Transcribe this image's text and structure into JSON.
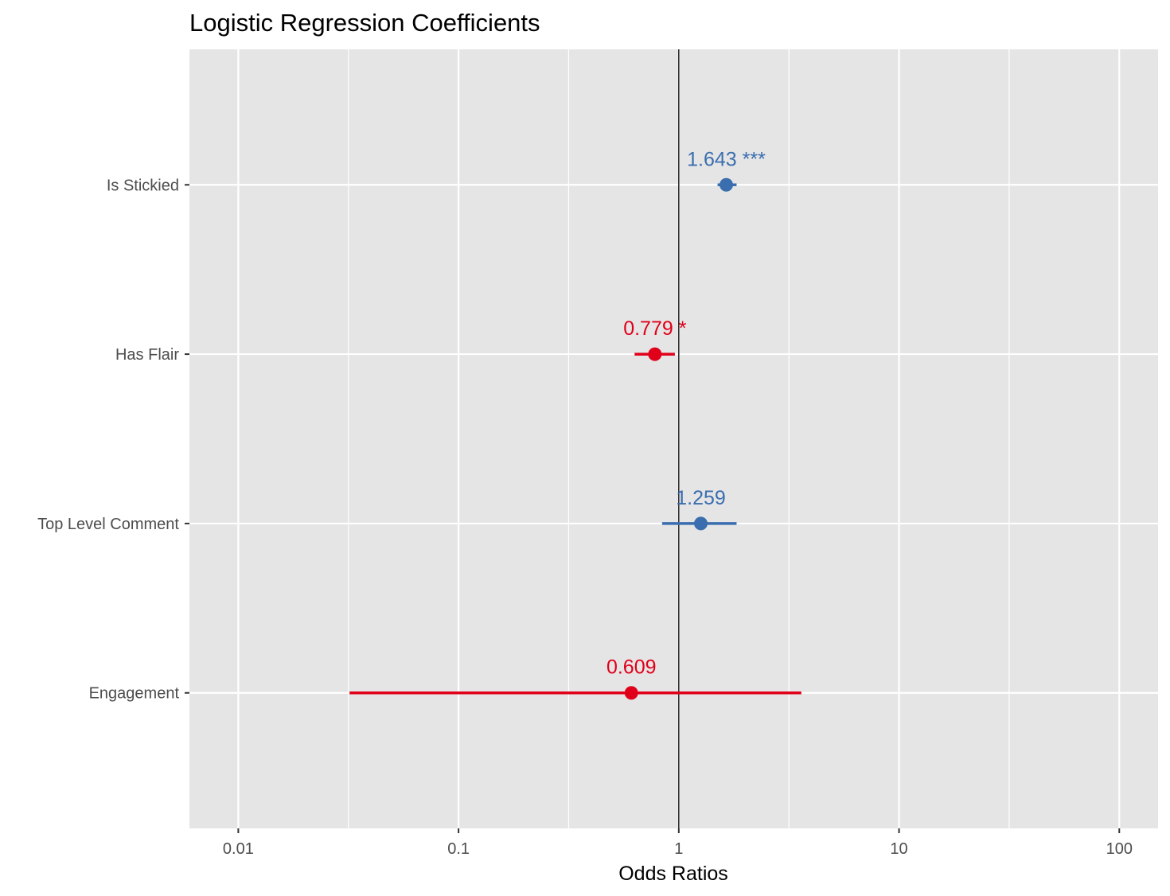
{
  "chart_data": {
    "type": "scatter",
    "title": "Logistic Regression Coefficients",
    "xlabel": "Odds Ratios",
    "ylabel": "",
    "x_scale": "log10",
    "xlim": [
      0.006,
      150
    ],
    "x_ticks": [
      {
        "value": 0.01,
        "label": "0.01"
      },
      {
        "value": 0.1,
        "label": "0.1"
      },
      {
        "value": 1,
        "label": "1"
      },
      {
        "value": 10,
        "label": "10"
      },
      {
        "value": 100,
        "label": "100"
      }
    ],
    "reference_line": 1,
    "grid": true,
    "colors": {
      "positive": "#3a6eaf",
      "negative": "#e0001a",
      "panel": "#e5e5e5",
      "grid": "#ffffff"
    },
    "terms": [
      {
        "label": "Is Stickied",
        "estimate": 1.643,
        "ci_low": 1.5,
        "ci_high": 1.83,
        "estimate_label": "1.643 ***",
        "direction": "positive"
      },
      {
        "label": "Has Flair",
        "estimate": 0.779,
        "ci_low": 0.63,
        "ci_high": 0.96,
        "estimate_label": "0.779 *",
        "direction": "negative"
      },
      {
        "label": "Top Level Comment",
        "estimate": 1.259,
        "ci_low": 0.84,
        "ci_high": 1.83,
        "estimate_label": "1.259",
        "direction": "positive"
      },
      {
        "label": "Engagement",
        "estimate": 0.609,
        "ci_low": 0.032,
        "ci_high": 3.6,
        "estimate_label": "0.609",
        "direction": "negative"
      }
    ]
  }
}
